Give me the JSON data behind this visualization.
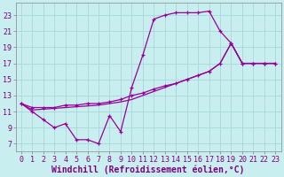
{
  "xlabel": "Windchill (Refroidissement éolien,°C)",
  "background_color": "#c8eef0",
  "grid_color": "#a8d8da",
  "line_color": "#990099",
  "xlim": [
    -0.5,
    23.5
  ],
  "ylim": [
    6.0,
    24.5
  ],
  "xtick_vals": [
    0,
    1,
    2,
    3,
    4,
    5,
    6,
    7,
    8,
    9,
    10,
    11,
    12,
    13,
    14,
    15,
    16,
    17,
    18,
    19,
    20,
    21,
    22,
    23
  ],
  "ytick_vals": [
    7,
    9,
    11,
    13,
    15,
    17,
    19,
    21,
    23
  ],
  "tick_fontsize": 6,
  "xlabel_fontsize": 7,
  "curve1_x": [
    0,
    1,
    2,
    3,
    4,
    5,
    6,
    7,
    8,
    9,
    10,
    11,
    12,
    13,
    14,
    15,
    16,
    17,
    18,
    19,
    20,
    21,
    22,
    23
  ],
  "curve1_y": [
    12,
    11,
    10,
    9,
    9.5,
    7.5,
    7.5,
    7,
    10.5,
    8.5,
    14,
    18,
    22.5,
    23,
    23.3,
    23.3,
    23.3,
    23.5,
    21,
    19.5,
    17,
    17,
    17,
    17
  ],
  "curve2_x": [
    0,
    1,
    2,
    3,
    4,
    5,
    6,
    7,
    8,
    9,
    10,
    11,
    12,
    13,
    14,
    15,
    16,
    17,
    18,
    19,
    20,
    21,
    22,
    23
  ],
  "curve2_y": [
    12,
    11.5,
    11.5,
    11.5,
    11.8,
    11.8,
    12,
    12,
    12.2,
    12.5,
    13,
    13.3,
    13.8,
    14.2,
    14.5,
    15,
    15.5,
    16,
    17,
    19.5,
    17,
    17,
    17,
    17
  ],
  "curve3_x": [
    0,
    1,
    2,
    3,
    4,
    5,
    6,
    7,
    8,
    9,
    10,
    11,
    12,
    13,
    14,
    15,
    16,
    17,
    18,
    19,
    20,
    21,
    22,
    23
  ],
  "curve3_y": [
    12,
    11.2,
    11.3,
    11.4,
    11.5,
    11.6,
    11.7,
    11.8,
    12,
    12.2,
    12.5,
    13,
    13.5,
    14,
    14.5,
    15,
    15.5,
    16,
    17,
    19.5,
    17,
    17,
    17,
    17
  ]
}
